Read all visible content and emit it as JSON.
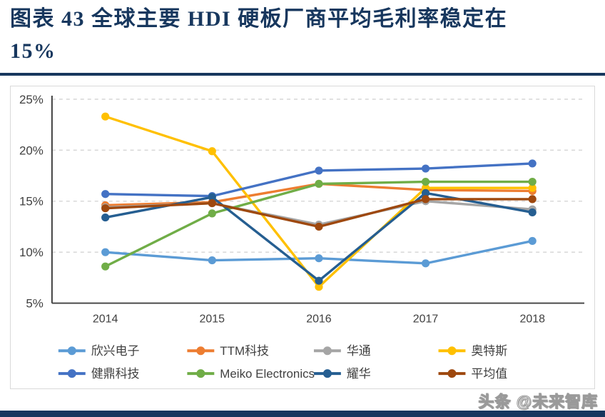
{
  "header": {
    "title_line1": "图表 43  全球主要 HDI 硬板厂商平均毛利率稳定在",
    "title_line2": "15%"
  },
  "watermark": "头条 @未来智库",
  "colors": {
    "title": "#17375E",
    "axis": "#404040",
    "gridline": "#D9D9D9",
    "chart_border": "#D9D9D9",
    "bottom_bar": "#17375E"
  },
  "chart_data": {
    "type": "line",
    "title": "全球主要 HDI 硬板厂商平均毛利率",
    "categories": [
      "2014",
      "2015",
      "2016",
      "2017",
      "2018"
    ],
    "series": [
      {
        "name": "欣兴电子",
        "color": "#5B9BD5",
        "values": [
          10.0,
          9.2,
          9.4,
          8.9,
          11.1
        ]
      },
      {
        "name": "TTM科技",
        "color": "#ED7D31",
        "values": [
          14.6,
          14.9,
          16.7,
          16.1,
          16.0
        ]
      },
      {
        "name": "华通",
        "color": "#A5A5A5",
        "values": [
          14.4,
          14.8,
          12.7,
          15.0,
          14.2
        ]
      },
      {
        "name": "奥特斯",
        "color": "#FFC000",
        "values": [
          23.3,
          19.9,
          6.6,
          16.3,
          16.3
        ]
      },
      {
        "name": "健鼎科技",
        "color": "#4472C4",
        "values": [
          15.7,
          15.5,
          18.0,
          18.2,
          18.7
        ]
      },
      {
        "name": "Meiko Electronics",
        "color": "#70AD47",
        "values": [
          8.6,
          13.8,
          16.7,
          16.9,
          16.9
        ]
      },
      {
        "name": "耀华",
        "color": "#255E91",
        "values": [
          13.4,
          15.4,
          7.2,
          15.8,
          13.9
        ]
      },
      {
        "name": "平均值",
        "color": "#9E480E",
        "values": [
          14.3,
          14.8,
          12.5,
          15.2,
          15.2
        ]
      }
    ],
    "ylim": [
      5,
      25
    ],
    "ytick_step": 5,
    "ytick_format": "percent",
    "grid": "dashed-horizontal",
    "legend_position": "bottom-two-rows",
    "marker": "circle"
  }
}
